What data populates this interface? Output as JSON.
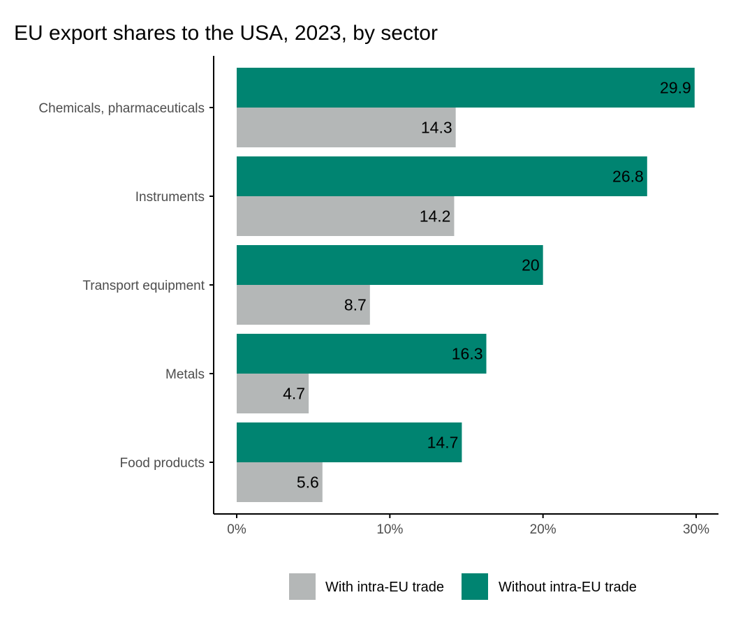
{
  "chart_data": {
    "type": "bar",
    "orientation": "horizontal",
    "title": "EU export shares to the USA, 2023, by sector",
    "xlabel": "",
    "ylabel": "",
    "xlim": [
      0,
      30
    ],
    "x_ticks": [
      0,
      10,
      20,
      30
    ],
    "x_tick_labels": [
      "0%",
      "10%",
      "20%",
      "30%"
    ],
    "grid": false,
    "legend_position": "bottom",
    "categories": [
      "Chemicals, pharmaceuticals",
      "Instruments",
      "Transport equipment",
      "Metals",
      "Food products"
    ],
    "series": [
      {
        "name": "With intra-EU trade",
        "color": "#b4b7b7",
        "values": [
          14.3,
          14.2,
          8.7,
          4.7,
          5.6
        ],
        "labels": [
          "14.3",
          "14.2",
          "8.7",
          "4.7",
          "5.6"
        ]
      },
      {
        "name": "Without intra-EU trade",
        "color": "#008471",
        "values": [
          29.9,
          26.8,
          20,
          16.3,
          14.7
        ],
        "labels": [
          "29.9",
          "26.8",
          "20",
          "16.3",
          "14.7"
        ]
      }
    ]
  }
}
